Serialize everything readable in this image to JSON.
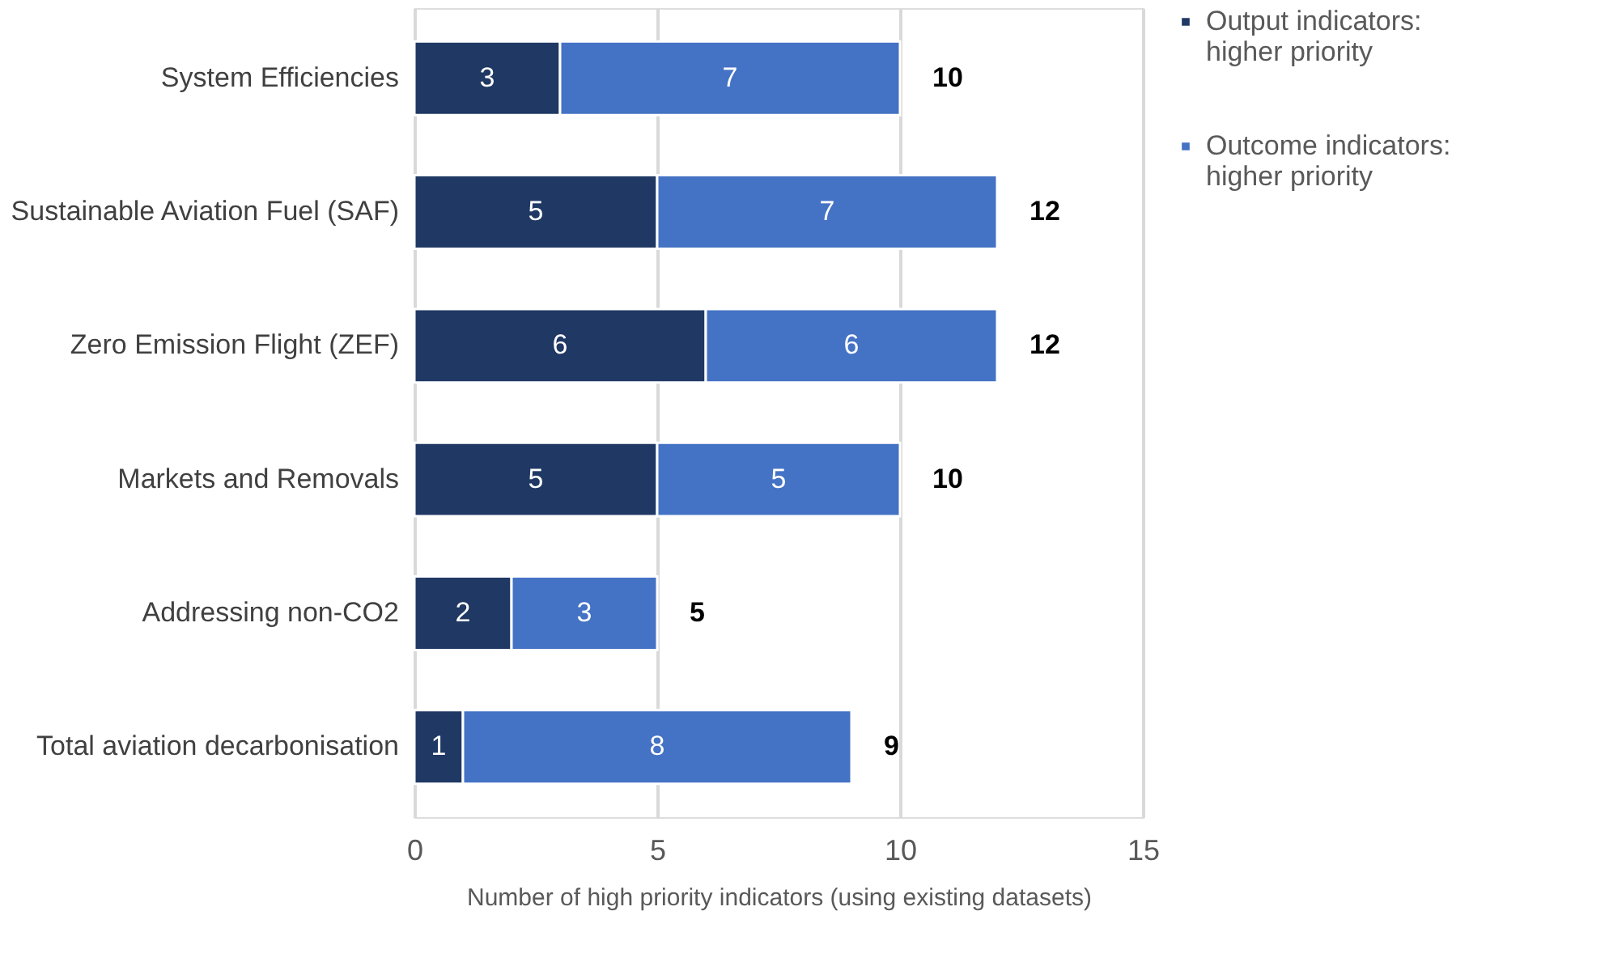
{
  "chart_data": {
    "type": "bar",
    "orientation": "horizontal",
    "stacked": true,
    "categories": [
      "System Efficiencies",
      "Sustainable Aviation Fuel (SAF)",
      "Zero Emission Flight (ZEF)",
      "Markets and Removals",
      "Addressing non-CO2",
      "Total aviation decarbonisation"
    ],
    "series": [
      {
        "name": "Output indicators: higher priority",
        "color": "#1f3864",
        "values": [
          3,
          5,
          6,
          5,
          2,
          1
        ]
      },
      {
        "name": "Outcome indicators: higher priority",
        "color": "#4472c4",
        "values": [
          7,
          7,
          6,
          5,
          3,
          8
        ]
      }
    ],
    "totals": [
      "10",
      "12",
      "12",
      "10",
      "5",
      "9"
    ],
    "xlabel": "Number of high priority indicators (using existing datasets)",
    "xlim": [
      0,
      15
    ],
    "xticks": [
      0,
      5,
      10,
      15
    ],
    "grid": "x",
    "legend": "right",
    "data_labels": true
  }
}
